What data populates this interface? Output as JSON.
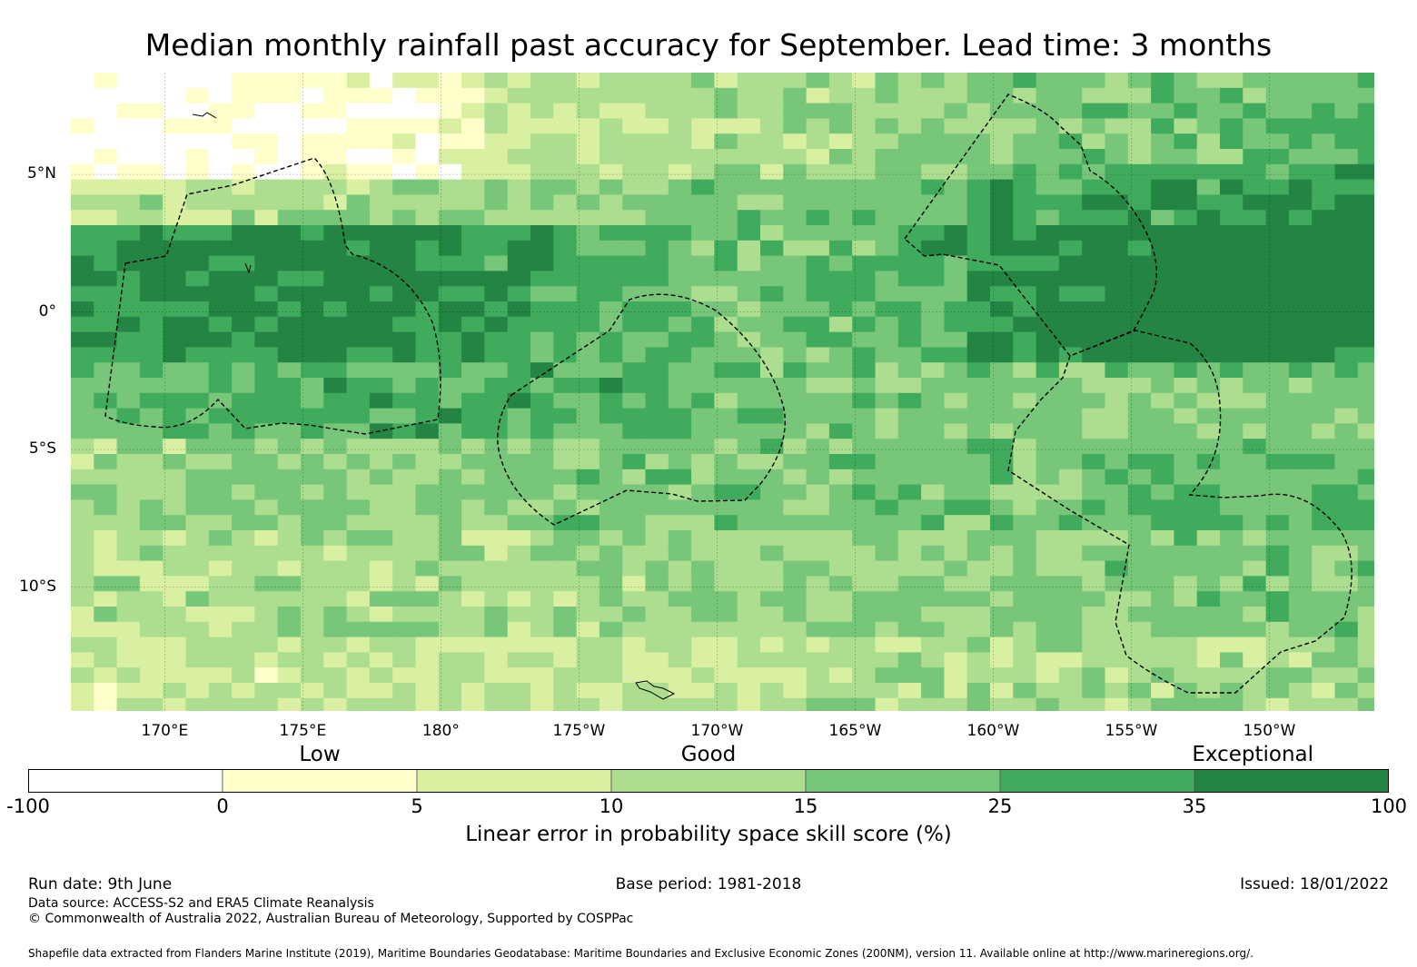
{
  "title": "Median monthly rainfall past accuracy for September. Lead time: 3 months",
  "map": {
    "lon_range": [
      166.6,
      213.8
    ],
    "lat_range": [
      -14.5,
      8.7
    ],
    "y_ticks": [
      {
        "label": "5°N",
        "lat": 5
      },
      {
        "label": "0°",
        "lat": 0
      },
      {
        "label": "5°S",
        "lat": -5
      },
      {
        "label": "10°S",
        "lat": -10
      }
    ],
    "x_ticks": [
      {
        "label": "170°E",
        "lon": 170
      },
      {
        "label": "175°E",
        "lon": 175
      },
      {
        "label": "180°",
        "lon": 180
      },
      {
        "label": "175°W",
        "lon": 185
      },
      {
        "label": "170°W",
        "lon": 190
      },
      {
        "label": "165°W",
        "lon": 195
      },
      {
        "label": "160°W",
        "lon": 200
      },
      {
        "label": "155°W",
        "lon": 205
      },
      {
        "label": "150°W",
        "lon": 210
      }
    ],
    "grid_lines": true
  },
  "colorbar": {
    "categories": [
      {
        "label": "Low",
        "at_index": 1.5
      },
      {
        "label": "Good",
        "at_index": 3.5
      },
      {
        "label": "Exceptional",
        "at_index": 6.3
      }
    ],
    "bins": [
      {
        "from": "-100",
        "to": "0",
        "color": "#ffffff"
      },
      {
        "from": "0",
        "to": "5",
        "color": "#ffffcc"
      },
      {
        "from": "5",
        "to": "10",
        "color": "#d9f0a3"
      },
      {
        "from": "10",
        "to": "15",
        "color": "#addd8e"
      },
      {
        "from": "15",
        "to": "25",
        "color": "#78c679"
      },
      {
        "from": "25",
        "to": "35",
        "color": "#41ab5d"
      },
      {
        "from": "35",
        "to": "100",
        "color": "#238443"
      }
    ],
    "tick_labels": [
      "-100",
      "0",
      "5",
      "10",
      "15",
      "25",
      "35",
      "100"
    ],
    "label": "Linear error in probability space skill score (%)"
  },
  "footer": {
    "run_date": "Run date: 9th June",
    "base_period": "Base period: 1981-2018",
    "issued": "Issued: 18/01/2022",
    "data_source": "Data source: ACCESS-S2 and ERA5 Climate Reanalysis",
    "copyright": "© Commonwealth of Australia 2022, Australian Bureau of Meteorology, Supported by COSPPac",
    "shapefile": "Shapefile data extracted from Flanders Marine Institute (2019), Maritime Boundaries Geodatabase: Maritime Boundaries and Exclusive Economic Zones (200NM), version 11. Available online at http://www.marineregions.org/."
  }
}
